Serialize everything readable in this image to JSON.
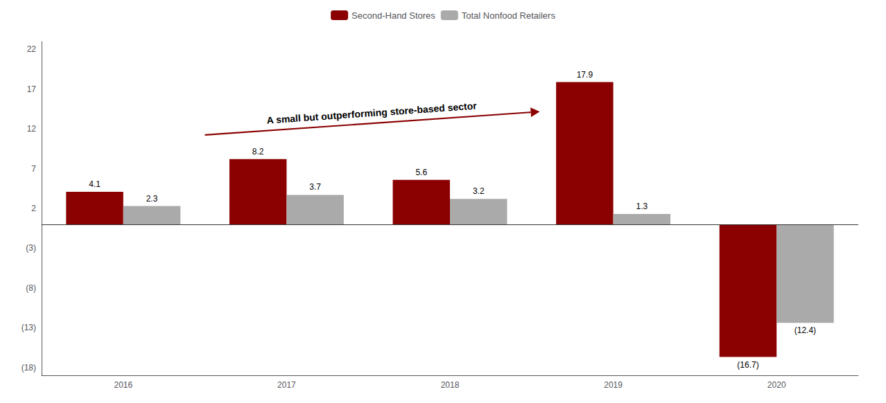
{
  "chart_data": {
    "type": "bar",
    "categories": [
      "2016",
      "2017",
      "2018",
      "2019",
      "2020"
    ],
    "series": [
      {
        "name": "Second-Hand Stores",
        "color": "#8B0000",
        "values": [
          4.1,
          8.2,
          5.6,
          17.9,
          -16.7
        ],
        "value_labels": [
          "4.1",
          "8.2",
          "5.6",
          "17.9",
          "(16.7)"
        ]
      },
      {
        "name": "Total Nonfood Retailers",
        "color": "#AAAAAA",
        "values": [
          2.3,
          3.7,
          3.2,
          1.3,
          -12.4
        ],
        "value_labels": [
          "2.3",
          "3.7",
          "3.2",
          "1.3",
          "(12.4)"
        ]
      }
    ],
    "ylim": [
      -19,
      23
    ],
    "yticks": [
      22,
      17,
      12,
      7,
      2,
      {
        "value": -3,
        "label": "(3)"
      },
      {
        "value": -8,
        "label": "(8)"
      },
      {
        "value": -13,
        "label": "(13)"
      },
      {
        "value": -18,
        "label": "(18)"
      }
    ],
    "grid": false,
    "legend": "top",
    "data_labels": true,
    "annotations": [
      "A small but outperforming store-based sector"
    ]
  }
}
